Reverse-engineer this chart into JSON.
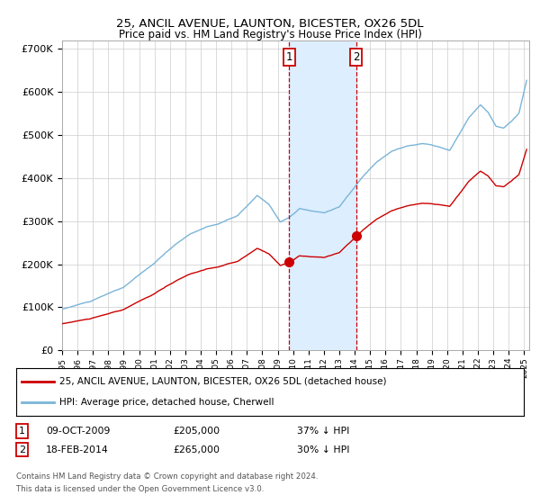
{
  "title": "25, ANCIL AVENUE, LAUNTON, BICESTER, OX26 5DL",
  "subtitle": "Price paid vs. HM Land Registry's House Price Index (HPI)",
  "sale1_date": "09-OCT-2009",
  "sale1_price": 205000,
  "sale1_label": "1",
  "sale1_pct": "37% ↓ HPI",
  "sale2_date": "18-FEB-2014",
  "sale2_price": 265000,
  "sale2_label": "2",
  "sale2_pct": "30% ↓ HPI",
  "legend_property": "25, ANCIL AVENUE, LAUNTON, BICESTER, OX26 5DL (detached house)",
  "legend_hpi": "HPI: Average price, detached house, Cherwell",
  "footnote1": "Contains HM Land Registry data © Crown copyright and database right 2024.",
  "footnote2": "This data is licensed under the Open Government Licence v3.0.",
  "hpi_color": "#7ab4d8",
  "property_color": "#cc0000",
  "shade_color": "#ddeeff",
  "vline_color": "#cc0000",
  "background_color": "#ffffff",
  "grid_color": "#cccccc",
  "ylim": [
    0,
    720000
  ],
  "start_year": 1995,
  "end_year": 2025
}
